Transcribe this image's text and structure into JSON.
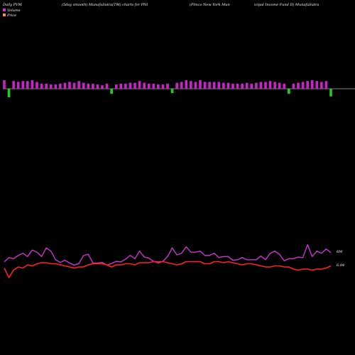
{
  "header": {
    "segments": [
      "Daily PVM",
      "(5day smooth) MunafaSutra(TM) charts for PNI",
      "(Pimco  New  York  Mun",
      "icipal Income  Fund II) MunafaSutra"
    ]
  },
  "legend": {
    "items": [
      {
        "label": "Volume",
        "color": "#cc33cc"
      },
      {
        "label": "Price",
        "color": "#ff8844"
      }
    ]
  },
  "labels": {
    "volume_value": "6M",
    "price_value": "6.94"
  },
  "colors": {
    "background": "#000000",
    "volume_up": "#cc22cc",
    "volume_down": "#22cc22",
    "volume_line": "#cc33cc",
    "price_line": "#ff2222",
    "baseline": "#aaaaaa"
  },
  "chart_data": {
    "type": "bar",
    "volume_bars": {
      "values": [
        10,
        -10,
        9,
        8,
        9,
        9,
        10,
        8,
        6,
        6,
        5,
        5,
        6,
        7,
        8,
        7,
        9,
        7,
        6,
        6,
        5,
        4,
        6,
        -6,
        5,
        6,
        6,
        7,
        7,
        9,
        7,
        6,
        6,
        5,
        5,
        6,
        -5,
        7,
        8,
        10,
        9,
        8,
        10,
        8,
        8,
        8,
        8,
        7,
        7,
        6,
        6,
        6,
        7,
        6,
        7,
        8,
        8,
        9,
        8,
        7,
        6,
        -6,
        6,
        7,
        8,
        9,
        10,
        9,
        8,
        9,
        -9
      ],
      "direction": [
        "up",
        "down",
        "up",
        "up",
        "up",
        "up",
        "up",
        "up",
        "up",
        "up",
        "up",
        "up",
        "up",
        "up",
        "up",
        "up",
        "up",
        "up",
        "up",
        "up",
        "up",
        "up",
        "up",
        "down",
        "up",
        "up",
        "up",
        "up",
        "up",
        "up",
        "up",
        "up",
        "up",
        "up",
        "up",
        "up",
        "down",
        "up",
        "up",
        "up",
        "up",
        "up",
        "up",
        "up",
        "up",
        "up",
        "up",
        "up",
        "up",
        "up",
        "up",
        "up",
        "up",
        "up",
        "up",
        "up",
        "up",
        "up",
        "up",
        "up",
        "up",
        "down",
        "up",
        "up",
        "up",
        "up",
        "up",
        "up",
        "up",
        "up",
        "down"
      ]
    },
    "volume_smooth": {
      "values": [
        5.2,
        6.0,
        5.8,
        6.4,
        6.8,
        6.2,
        7.4,
        7.0,
        6.2,
        7.8,
        7.2,
        5.6,
        5.1,
        5.5,
        5.0,
        4.6,
        4.9,
        6.4,
        6.6,
        5.0,
        5.0,
        5.1,
        4.6,
        4.9,
        5.3,
        5.2,
        5.7,
        6.4,
        5.8,
        7.2,
        6.1,
        5.9,
        5.3,
        5.0,
        5.3,
        6.2,
        7.8,
        6.5,
        6.8,
        8.0,
        7.0,
        7.0,
        7.2,
        6.4,
        6.4,
        6.8,
        6.0,
        6.2,
        6.2,
        5.5,
        5.6,
        6.0,
        5.6,
        5.6,
        5.6,
        6.3,
        5.6,
        6.8,
        7.2,
        6.6,
        5.4,
        5.8,
        5.8,
        6.1,
        6.0,
        8.4,
        6.2,
        7.2,
        6.8,
        7.6,
        6.9
      ]
    },
    "price": {
      "values": [
        6.95,
        6.86,
        6.93,
        6.96,
        6.95,
        6.98,
        6.97,
        6.99,
        7.0,
        7.0,
        6.99,
        6.99,
        6.98,
        6.97,
        6.96,
        6.95,
        6.96,
        6.96,
        6.98,
        6.99,
        6.99,
        6.99,
        6.98,
        6.96,
        6.98,
        6.98,
        6.99,
        6.99,
        6.98,
        7.0,
        7.0,
        7.0,
        7.01,
        7.01,
        7.01,
        7.0,
        6.99,
        6.98,
        6.99,
        7.01,
        7.01,
        7.01,
        7.01,
        6.99,
        6.99,
        7.01,
        7.01,
        7.0,
        7.01,
        7.0,
        6.99,
        6.98,
        6.99,
        6.99,
        6.98,
        6.97,
        6.96,
        6.96,
        6.97,
        6.97,
        6.96,
        6.96,
        6.94,
        6.93,
        6.94,
        6.94,
        6.93,
        6.94,
        6.94,
        6.95,
        6.97
      ]
    }
  }
}
